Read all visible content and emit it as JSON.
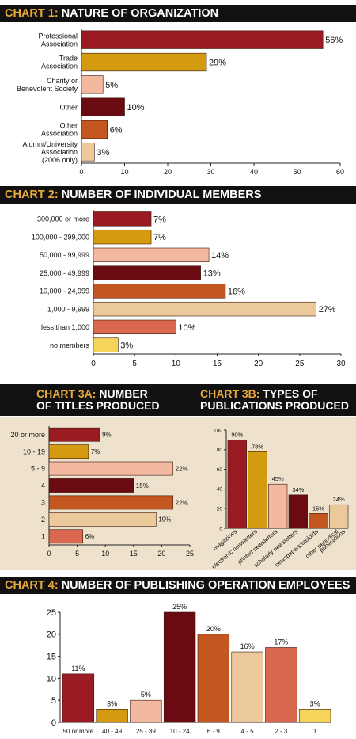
{
  "colors": {
    "crimson": "#9b1b23",
    "gold": "#d49a10",
    "peach": "#f2b9a0",
    "maroon": "#6a0b12",
    "orange": "#c4561f",
    "sand": "#ebc99a",
    "salmon": "#d9684e",
    "yellow": "#f5d45a",
    "panel": "#efe2cc",
    "accent": "#e7a83c"
  },
  "banners": {
    "c1": {
      "num": "CHART 1:",
      "text": "NATURE OF ORGANIZATION"
    },
    "c2": {
      "num": "CHART 2:",
      "text": "NUMBER OF INDIVIDUAL MEMBERS"
    },
    "c3a": {
      "num": "CHART 3A:",
      "text1": "NUMBER",
      "text2": "OF TITLES PRODUCED"
    },
    "c3b": {
      "num": "CHART 3B:",
      "text1": "TYPES OF",
      "text2": "PUBLICATIONS PRODUCED"
    },
    "c4": {
      "num": "CHART 4:",
      "text": "NUMBER OF PUBLISHING OPERATION EMPLOYEES"
    }
  },
  "chart_data": [
    {
      "id": "chart1",
      "type": "bar",
      "orientation": "horizontal",
      "title": "CHART 1: NATURE OF ORGANIZATION",
      "categories": [
        [
          "Professional",
          "Association"
        ],
        [
          "Trade",
          "Association"
        ],
        [
          "Charity or",
          "Benevolent Society"
        ],
        [
          "Other"
        ],
        [
          "Other",
          "Association"
        ],
        [
          "Alumni/University",
          "Association",
          "(2006 only)"
        ]
      ],
      "values": [
        56,
        29,
        5,
        10,
        6,
        3
      ],
      "labels": [
        "56%",
        "29%",
        "5%",
        "10%",
        "6%",
        "3%"
      ],
      "colors": [
        "#9b1b23",
        "#d49a10",
        "#f2b9a0",
        "#6a0b12",
        "#c4561f",
        "#ebc99a"
      ],
      "xlim": [
        0,
        60
      ],
      "xticks": [
        0,
        10,
        20,
        30,
        40,
        50,
        60
      ]
    },
    {
      "id": "chart2",
      "type": "bar",
      "orientation": "horizontal",
      "title": "CHART 2: NUMBER OF INDIVIDUAL MEMBERS",
      "categories": [
        [
          "300,000 or more"
        ],
        [
          "100,000 - 299,000"
        ],
        [
          "50,000 - 99,999"
        ],
        [
          "25,000 - 49,999"
        ],
        [
          "10,000 - 24,999"
        ],
        [
          "1,000 - 9,999"
        ],
        [
          "less than 1,000"
        ],
        [
          "no members"
        ]
      ],
      "values": [
        7,
        7,
        14,
        13,
        16,
        27,
        10,
        3
      ],
      "labels": [
        "7%",
        "7%",
        "14%",
        "13%",
        "16%",
        "27%",
        "10%",
        "3%"
      ],
      "colors": [
        "#9b1b23",
        "#d49a10",
        "#f2b9a0",
        "#6a0b12",
        "#c4561f",
        "#ebc99a",
        "#d9684e",
        "#f5d45a"
      ],
      "xlim": [
        0,
        30
      ],
      "xticks": [
        0,
        5,
        10,
        15,
        20,
        25,
        30
      ]
    },
    {
      "id": "chart3a",
      "type": "bar",
      "orientation": "horizontal",
      "title": "CHART 3A: NUMBER OF TITLES PRODUCED",
      "categories": [
        [
          "20 or more"
        ],
        [
          "10 - 19"
        ],
        [
          "5 - 9"
        ],
        [
          "4"
        ],
        [
          "3"
        ],
        [
          "2"
        ],
        [
          "1"
        ]
      ],
      "values": [
        9,
        7,
        22,
        15,
        22,
        19,
        6
      ],
      "labels": [
        "9%",
        "7%",
        "22%",
        "15%",
        "22%",
        "19%",
        "6%"
      ],
      "colors": [
        "#9b1b23",
        "#d49a10",
        "#f2b9a0",
        "#6a0b12",
        "#c4561f",
        "#ebc99a",
        "#d9684e"
      ],
      "xlim": [
        0,
        25
      ],
      "xticks": [
        0,
        5,
        10,
        15,
        20,
        25
      ]
    },
    {
      "id": "chart3b",
      "type": "bar",
      "orientation": "vertical",
      "title": "CHART 3B: TYPES OF PUBLICATIONS PRODUCED",
      "categories": [
        [
          "magazines"
        ],
        [
          "electronic newsletters"
        ],
        [
          "printed newsletters"
        ],
        [
          "scholarly newsletters"
        ],
        [
          "newspapers/tabloids"
        ],
        [
          "other periodical",
          "publications"
        ]
      ],
      "values": [
        90,
        78,
        45,
        34,
        15,
        24
      ],
      "labels": [
        "90%",
        "78%",
        "45%",
        "34%",
        "15%",
        "24%"
      ],
      "colors": [
        "#9b1b23",
        "#d49a10",
        "#f2b9a0",
        "#6a0b12",
        "#c4561f",
        "#ebc99a"
      ],
      "ylim": [
        0,
        100
      ],
      "yticks": [
        0,
        20,
        40,
        60,
        80,
        100
      ]
    },
    {
      "id": "chart4",
      "type": "bar",
      "orientation": "vertical",
      "title": "CHART 4: NUMBER OF PUBLISHING OPERATION EMPLOYEES",
      "categories": [
        [
          "50 or more"
        ],
        [
          "40 - 49"
        ],
        [
          "25 - 39"
        ],
        [
          "10 - 24"
        ],
        [
          "6 - 9"
        ],
        [
          "4 - 5"
        ],
        [
          "2 - 3"
        ],
        [
          "1"
        ]
      ],
      "values": [
        11,
        3,
        5,
        25,
        20,
        16,
        17,
        3
      ],
      "labels": [
        "11%",
        "3%",
        "5%",
        "25%",
        "20%",
        "16%",
        "17%",
        "3%"
      ],
      "colors": [
        "#9b1b23",
        "#d49a10",
        "#f2b9a0",
        "#6a0b12",
        "#c4561f",
        "#ebc99a",
        "#d9684e",
        "#f5d45a"
      ],
      "ylim": [
        0,
        25
      ],
      "yticks": [
        0,
        5,
        10,
        15,
        20,
        25
      ]
    }
  ]
}
